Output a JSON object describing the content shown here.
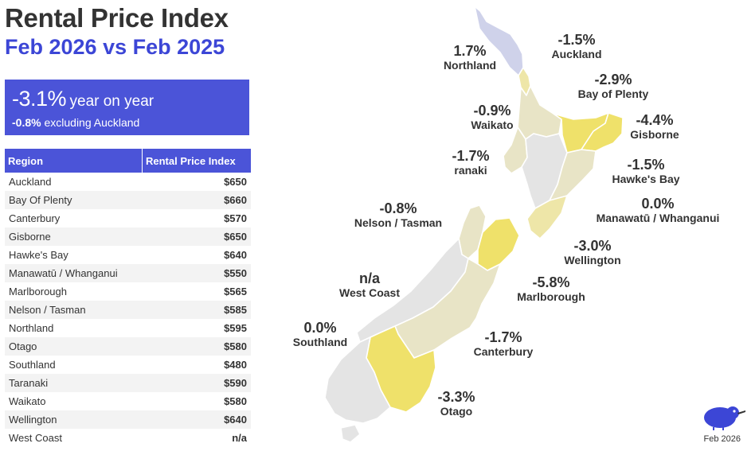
{
  "header": {
    "title": "Rental Price Index",
    "subtitle": "Feb 2026 vs Feb 2025"
  },
  "kpi": {
    "value": "-3.1%",
    "label": "year on year",
    "sub_value": "-0.8%",
    "sub_label": "excluding Auckland"
  },
  "table": {
    "headers": [
      "Region",
      "Rental Price Index"
    ],
    "rows": [
      [
        "Auckland",
        "$650"
      ],
      [
        "Bay Of Plenty",
        "$660"
      ],
      [
        "Canterbury",
        "$570"
      ],
      [
        "Gisborne",
        "$650"
      ],
      [
        "Hawke's Bay",
        "$640"
      ],
      [
        "Manawatū / Whanganui",
        "$550"
      ],
      [
        "Marlborough",
        "$565"
      ],
      [
        "Nelson / Tasman",
        "$585"
      ],
      [
        "Northland",
        "$595"
      ],
      [
        "Otago",
        "$580"
      ],
      [
        "Southland",
        "$480"
      ],
      [
        "Taranaki",
        "$590"
      ],
      [
        "Waikato",
        "$580"
      ],
      [
        "Wellington",
        "$640"
      ],
      [
        "West Coast",
        "n/a"
      ]
    ]
  },
  "map": {
    "labels": [
      {
        "pct": "1.7%",
        "name": "Northland"
      },
      {
        "pct": "-1.5%",
        "name": "Auckland"
      },
      {
        "pct": "-2.9%",
        "name": "Bay of Plenty"
      },
      {
        "pct": "-0.9%",
        "name": "Waikato"
      },
      {
        "pct": "-4.4%",
        "name": "Gisborne"
      },
      {
        "pct": "-1.7%",
        "name": "ranaki"
      },
      {
        "pct": "-1.5%",
        "name": "Hawke's Bay"
      },
      {
        "pct": "0.0%",
        "name": "Manawatū / Whanganui"
      },
      {
        "pct": "-0.8%",
        "name": "Nelson / Tasman"
      },
      {
        "pct": "-3.0%",
        "name": "Wellington"
      },
      {
        "pct": "n/a",
        "name": "West Coast"
      },
      {
        "pct": "-5.8%",
        "name": "Marlborough"
      },
      {
        "pct": "0.0%",
        "name": "Southland"
      },
      {
        "pct": "-1.7%",
        "name": "Canterbury"
      },
      {
        "pct": "-3.3%",
        "name": "Otago"
      }
    ],
    "colors": {
      "strong": "#efe16a",
      "medium": "#eee6a8",
      "light": "#e8e4c6",
      "neutral": "#e4e4e4",
      "lavender": "#cfd2ea"
    }
  },
  "footer": {
    "date": "Feb 2026"
  }
}
